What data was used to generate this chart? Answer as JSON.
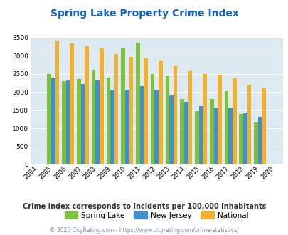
{
  "title": "Spring Lake Property Crime Index",
  "years": [
    2004,
    2005,
    2006,
    2007,
    2008,
    2009,
    2010,
    2011,
    2012,
    2013,
    2014,
    2015,
    2016,
    2017,
    2018,
    2019,
    2020
  ],
  "spring_lake": [
    0,
    2500,
    2300,
    2350,
    2620,
    2400,
    3200,
    3360,
    2500,
    2430,
    1800,
    1480,
    1800,
    2030,
    1390,
    1160,
    0
  ],
  "new_jersey": [
    0,
    2370,
    2310,
    2210,
    2310,
    2070,
    2070,
    2160,
    2060,
    1900,
    1720,
    1620,
    1560,
    1560,
    1410,
    1310,
    0
  ],
  "national": [
    0,
    3420,
    3340,
    3260,
    3210,
    3050,
    2960,
    2920,
    2870,
    2730,
    2590,
    2490,
    2470,
    2370,
    2200,
    2110,
    0
  ],
  "colors": {
    "spring_lake": "#80c040",
    "new_jersey": "#4090d0",
    "national": "#f0b030"
  },
  "ylim": [
    0,
    3500
  ],
  "yticks": [
    0,
    500,
    1000,
    1500,
    2000,
    2500,
    3000,
    3500
  ],
  "bg_color": "#dce9f0",
  "legend_labels": [
    "Spring Lake",
    "New Jersey",
    "National"
  ],
  "subtitle": "Crime Index corresponds to incidents per 100,000 inhabitants",
  "footer": "© 2025 CityRating.com - https://www.cityrating.com/crime-statistics/",
  "title_color": "#1060c0",
  "subtitle_color": "#303030",
  "footer_color": "#8090a0"
}
